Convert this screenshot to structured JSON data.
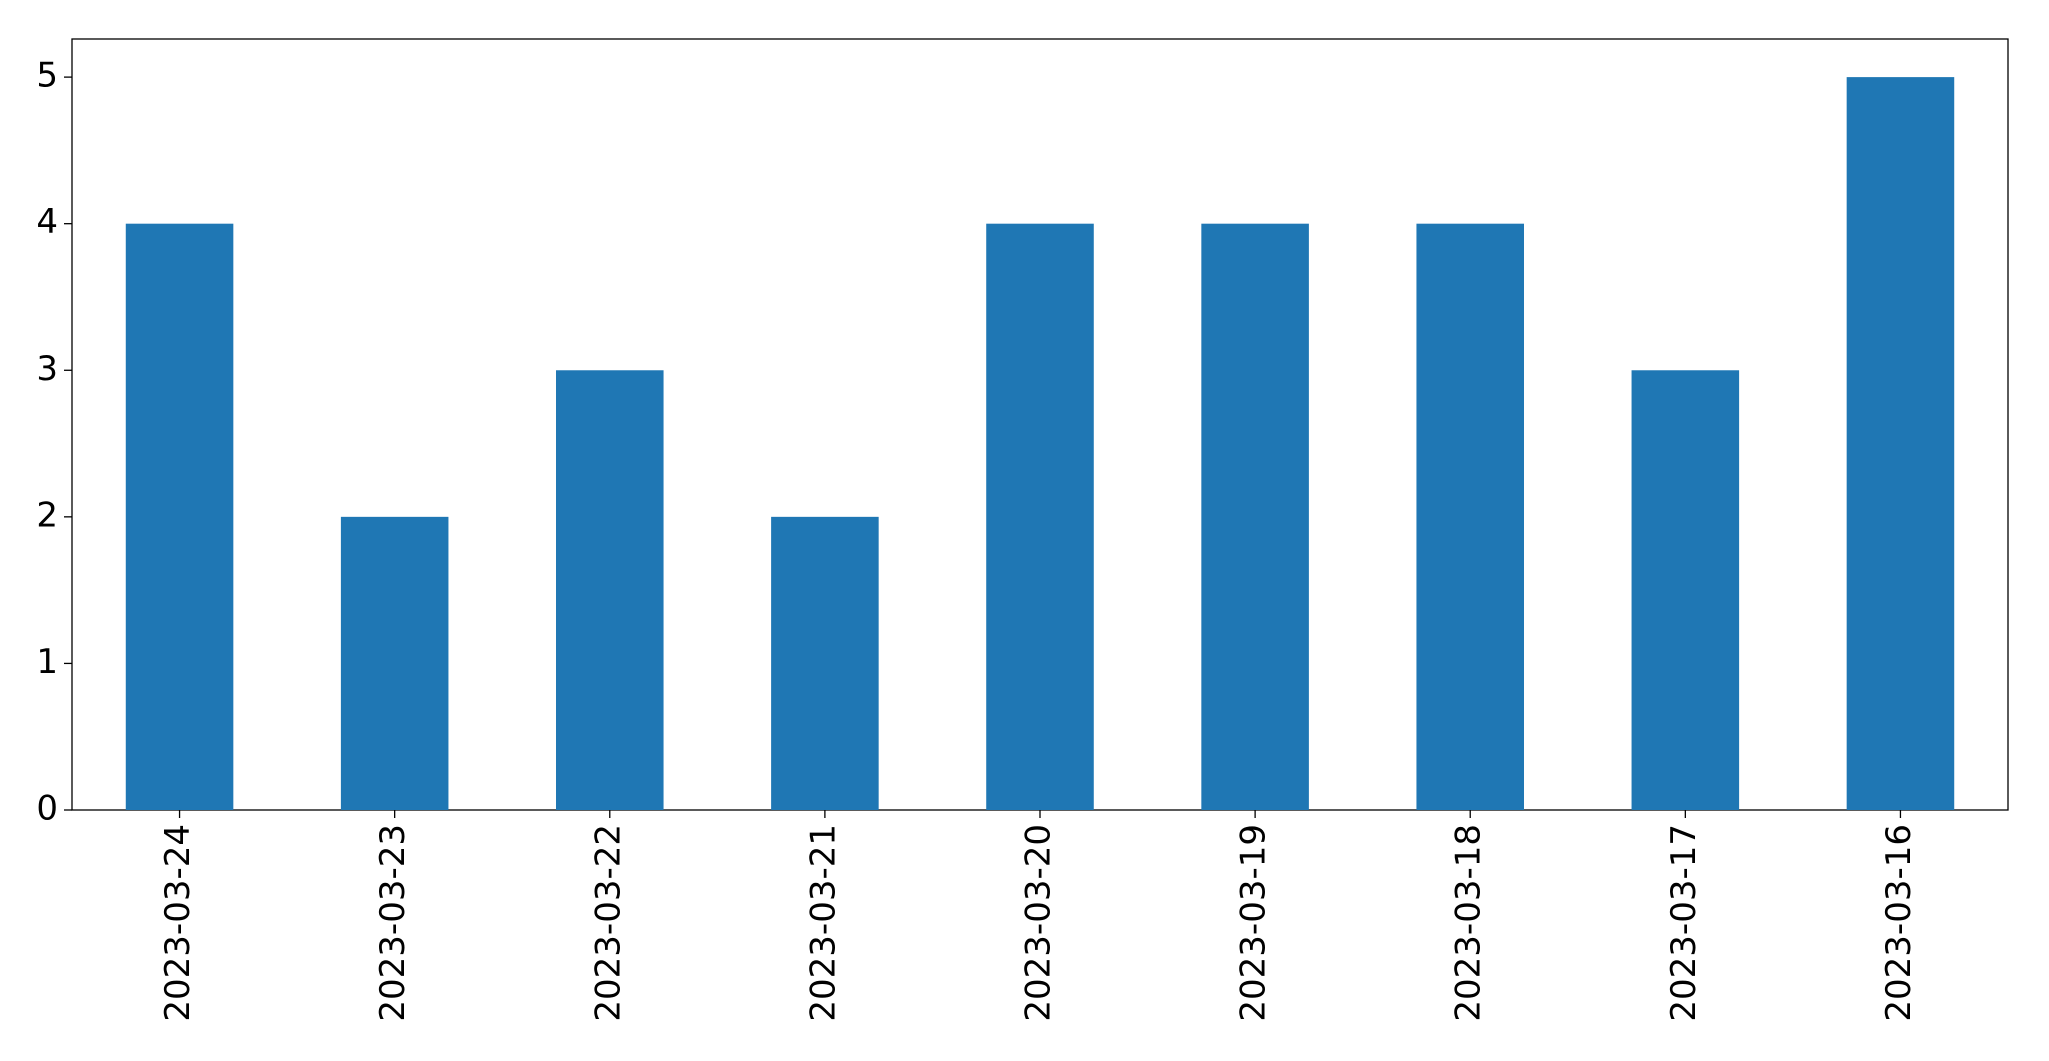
{
  "chart_data": {
    "type": "bar",
    "categories": [
      "2023-03-24",
      "2023-03-23",
      "2023-03-22",
      "2023-03-21",
      "2023-03-20",
      "2023-03-19",
      "2023-03-18",
      "2023-03-17",
      "2023-03-16"
    ],
    "values": [
      4,
      2,
      3,
      2,
      4,
      4,
      4,
      3,
      5
    ],
    "color": "#1f77b4",
    "ylim": [
      0,
      5.26
    ],
    "yticks": [
      0,
      1,
      2,
      3,
      4,
      5
    ],
    "grid": false
  }
}
